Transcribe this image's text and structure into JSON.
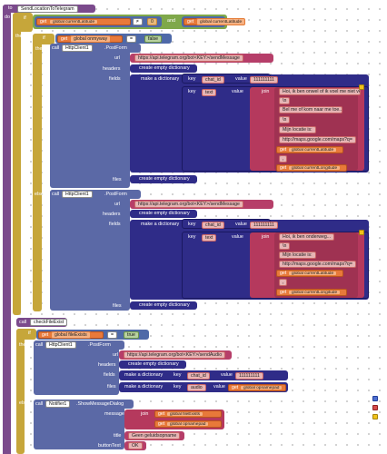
{
  "procedure": {
    "to": "to",
    "name": "SendLocationToTelegram",
    "do": "do"
  },
  "if1": {
    "if": "if",
    "then": "then",
    "else": "else"
  },
  "cond1": {
    "get1": "get",
    "var1": "global currentLatitude",
    "neq1": "≠",
    "zero1": "0",
    "and": "and",
    "get2": "get",
    "var2": "global currentLatitude",
    "neq2": "≠",
    "zero2": "0"
  },
  "if2": {
    "if": "if",
    "then": "then",
    "get": "get",
    "var": "global onmyway",
    "eq": "=",
    "false": "false"
  },
  "post1": {
    "call": "call",
    "component": "HttpClient1",
    "method": ".PostForm",
    "url_label": "url",
    "url": "https://api.telegram.org/bot<KEY>/sendMessage",
    "headers_label": "headers",
    "headers": "create empty dictionary",
    "fields_label": "fields",
    "make_dict": "make a dictionary",
    "key_label": "key",
    "value_label": "value",
    "key1": "chat_id",
    "value1": "111111111",
    "key2": "text",
    "join": "join",
    "j1": "Hoi, ik ben onwel of ik voel me niet veilig",
    "j2": "\\n",
    "j3": "Bel me of kom naar me toe...",
    "j4": "\\n",
    "j5": "Mijn locatie is:",
    "j6": "http://maps.google.com/maps?q=",
    "j7_get": "get",
    "j7": "global currentLatitude",
    "j8": ",",
    "j9_get": "get",
    "j9": "global currentLongitude",
    "files_label": "files",
    "files": "create empty dictionary"
  },
  "post2": {
    "call": "call",
    "component": "HttpClient1",
    "method": ".PostForm",
    "url_label": "url",
    "url": "https://api.telegram.org/bot<KEY>/sendMessage",
    "headers_label": "headers",
    "headers": "create empty dictionary",
    "fields_label": "fields",
    "make_dict": "make a dictionary",
    "key_label": "key",
    "value_label": "value",
    "key1": "chat_id",
    "value1": "111111111",
    "key2": "text",
    "join": "join",
    "j1": "Hoi, ik ben onderweg...",
    "j2": "\\n",
    "j3": "Mijn locatie is:",
    "j4": "http://maps.google.com/maps?q=",
    "j5_get": "get",
    "j5": "global currentLatitude",
    "j6": ",",
    "j7_get": "get",
    "j7": "global currentLongitude",
    "files_label": "files",
    "files": "create empty dictionary"
  },
  "checkfile": {
    "call": "call",
    "name": "checkFileExist"
  },
  "if3": {
    "if": "if",
    "get": "get",
    "var": "global fileExists",
    "eq": "=",
    "true": "true",
    "then": "then",
    "else": "else"
  },
  "post3": {
    "call": "call",
    "component": "HttpClient1",
    "method": ".PostForm",
    "url_label": "url",
    "url": "https://api.telegram.org/bot<KEY>/sendAudio",
    "headers_label": "headers",
    "headers": "create empty dictionary",
    "fields_label": "fields",
    "make_dict": "make a dictionary",
    "key_label": "key",
    "value_label": "value",
    "key1": "chat_id",
    "value1": "111111111",
    "files_label": "files",
    "make_dict2": "make a dictionary",
    "key2": "audio",
    "v2_get": "get",
    "v2": "global opnamepad"
  },
  "notifier": {
    "call": "call",
    "component": "Notifier1",
    "method": ".ShowMessageDialog",
    "message_label": "message",
    "join": "join",
    "get1": "get",
    "m1": "global fileExists",
    "get2": "get",
    "m2": "global opnamepad",
    "title_label": "title",
    "title": "Geen geluidsopname",
    "button_label": "buttonText",
    "button": "OK"
  }
}
